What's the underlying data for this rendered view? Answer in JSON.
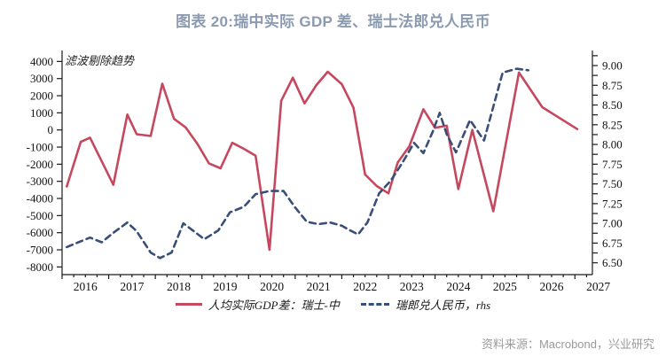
{
  "title": "图表 20:瑞中实际 GDP 差、瑞士法郎兑人民币",
  "annotation": "滤波剔除趋势",
  "source": "资料来源：Macrobond，兴业研究",
  "colors": {
    "gdp_line": "#c5485e",
    "fx_line": "#3a4f77",
    "title": "#8b9ab1",
    "axis": "#1a1a1a",
    "source_text": "#9a9a9a"
  },
  "legend": {
    "items": [
      {
        "label": "人均实际GDP差：瑞士-中",
        "style": "solid",
        "color": "#c5485e"
      },
      {
        "label": "瑞郎兑人民币，rhs",
        "style": "dashed",
        "color": "#3a4f77"
      }
    ]
  },
  "chart_data": {
    "type": "line",
    "title": "图表 20:瑞中实际 GDP 差、瑞士法郎兑人民币",
    "annotation": "滤波剔除趋势",
    "x_axis": {
      "tick_years": [
        2016,
        2017,
        2018,
        2019,
        2020,
        2021,
        2022,
        2023,
        2024,
        2025,
        2026,
        2027
      ],
      "minor_tick_interval": 0.25,
      "range": [
        2016,
        2027.4
      ]
    },
    "y_left_axis": {
      "tick_values": [
        4000,
        3000,
        2000,
        1000,
        0,
        -1000,
        -2000,
        -3000,
        -4000,
        -5000,
        -6000,
        -7000,
        -8000
      ],
      "range": [
        -8450,
        4650
      ],
      "units_per_px": "1000 per 19.33px"
    },
    "y_right_axis": {
      "tick_values": [
        9.0,
        8.75,
        8.5,
        8.25,
        8.0,
        7.75,
        7.5,
        7.25,
        7.0,
        6.75,
        6.5
      ],
      "minor_tick_interval": 0.125,
      "range": [
        6.35,
        9.19
      ]
    },
    "grid": false,
    "legend_position": "bottom",
    "series": [
      {
        "name": "人均实际GDP差：瑞士-中",
        "axis": "left",
        "style": "solid",
        "color": "#c5485e",
        "points": [
          [
            2016.1,
            -3300
          ],
          [
            2016.4,
            -700
          ],
          [
            2016.6,
            -450
          ],
          [
            2016.9,
            -2100
          ],
          [
            2017.1,
            -3200
          ],
          [
            2017.4,
            900
          ],
          [
            2017.6,
            -250
          ],
          [
            2017.9,
            -350
          ],
          [
            2018.15,
            2700
          ],
          [
            2018.4,
            650
          ],
          [
            2018.65,
            150
          ],
          [
            2018.9,
            -800
          ],
          [
            2019.15,
            -1950
          ],
          [
            2019.4,
            -2240
          ],
          [
            2019.65,
            -750
          ],
          [
            2019.9,
            -1100
          ],
          [
            2020.15,
            -1500
          ],
          [
            2020.45,
            -7000
          ],
          [
            2020.7,
            1700
          ],
          [
            2020.95,
            3050
          ],
          [
            2021.2,
            1550
          ],
          [
            2021.45,
            2600
          ],
          [
            2021.7,
            3400
          ],
          [
            2022.0,
            2675
          ],
          [
            2022.25,
            1300
          ],
          [
            2022.5,
            -2600
          ],
          [
            2022.75,
            -3275
          ],
          [
            2023.0,
            -3700
          ],
          [
            2023.2,
            -1900
          ],
          [
            2023.45,
            -950
          ],
          [
            2023.75,
            1210
          ],
          [
            2024.0,
            125
          ],
          [
            2024.25,
            250
          ],
          [
            2024.5,
            -3450
          ],
          [
            2024.8,
            0
          ],
          [
            2025.25,
            -4750
          ],
          [
            2025.8,
            3350
          ],
          [
            2026.3,
            1330
          ],
          [
            2027.05,
            50
          ]
        ]
      },
      {
        "name": "瑞郎兑人民币，rhs",
        "axis": "right",
        "style": "dashed",
        "color": "#3a4f77",
        "points": [
          [
            2016.1,
            6.7
          ],
          [
            2016.35,
            6.76
          ],
          [
            2016.6,
            6.82
          ],
          [
            2016.85,
            6.76
          ],
          [
            2017.1,
            6.88
          ],
          [
            2017.4,
            7.01
          ],
          [
            2017.6,
            6.9
          ],
          [
            2017.9,
            6.63
          ],
          [
            2018.1,
            6.56
          ],
          [
            2018.35,
            6.63
          ],
          [
            2018.6,
            7.0
          ],
          [
            2018.85,
            6.89
          ],
          [
            2019.05,
            6.8
          ],
          [
            2019.35,
            6.91
          ],
          [
            2019.6,
            7.14
          ],
          [
            2019.9,
            7.21
          ],
          [
            2020.15,
            7.37
          ],
          [
            2020.45,
            7.41
          ],
          [
            2020.75,
            7.41
          ],
          [
            2021.0,
            7.2
          ],
          [
            2021.25,
            7.02
          ],
          [
            2021.5,
            6.99
          ],
          [
            2021.75,
            7.01
          ],
          [
            2022.0,
            6.97
          ],
          [
            2022.15,
            6.92
          ],
          [
            2022.35,
            6.86
          ],
          [
            2022.55,
            7.01
          ],
          [
            2022.8,
            7.38
          ],
          [
            2023.05,
            7.54
          ],
          [
            2023.3,
            7.77
          ],
          [
            2023.55,
            8.02
          ],
          [
            2023.75,
            7.89
          ],
          [
            2023.95,
            8.16
          ],
          [
            2024.1,
            8.4
          ],
          [
            2024.25,
            8.13
          ],
          [
            2024.45,
            7.9
          ],
          [
            2024.75,
            8.31
          ],
          [
            2025.05,
            8.05
          ],
          [
            2025.45,
            8.91
          ],
          [
            2025.75,
            8.96
          ],
          [
            2026.0,
            8.94
          ]
        ]
      }
    ]
  }
}
